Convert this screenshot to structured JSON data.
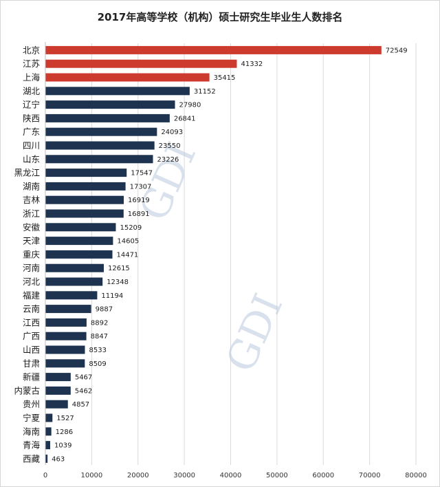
{
  "title": "2017年高等学校（机构）硕士研究生毕业生人数排名",
  "watermark_text": "GDI",
  "colors": {
    "highlight": "#cc3b2e",
    "bar": "#1e3350",
    "grid": "#d9d9d9",
    "watermark": "#b8c9dc"
  },
  "chart_data": {
    "type": "bar",
    "orientation": "horizontal",
    "title": "2017年高等学校（机构）硕士研究生毕业生人数排名",
    "xlabel": "",
    "ylabel": "",
    "xlim": [
      0,
      80000
    ],
    "x_ticks": [
      0,
      10000,
      20000,
      30000,
      40000,
      50000,
      60000,
      70000,
      80000
    ],
    "grid": true,
    "legend": "none",
    "highlight_count": 3,
    "categories": [
      "北京",
      "江苏",
      "上海",
      "湖北",
      "辽宁",
      "陕西",
      "广东",
      "四川",
      "山东",
      "黑龙江",
      "湖南",
      "吉林",
      "浙江",
      "安徽",
      "天津",
      "重庆",
      "河南",
      "河北",
      "福建",
      "云南",
      "江西",
      "广西",
      "山西",
      "甘肃",
      "新疆",
      "内蒙古",
      "贵州",
      "宁夏",
      "海南",
      "青海",
      "西藏"
    ],
    "values": [
      72549,
      41332,
      35415,
      31152,
      27980,
      26841,
      24093,
      23550,
      23226,
      17547,
      17307,
      16919,
      16891,
      15209,
      14605,
      14471,
      12615,
      12348,
      11194,
      9887,
      8892,
      8847,
      8533,
      8509,
      5467,
      5462,
      4857,
      1527,
      1286,
      1039,
      463
    ]
  }
}
